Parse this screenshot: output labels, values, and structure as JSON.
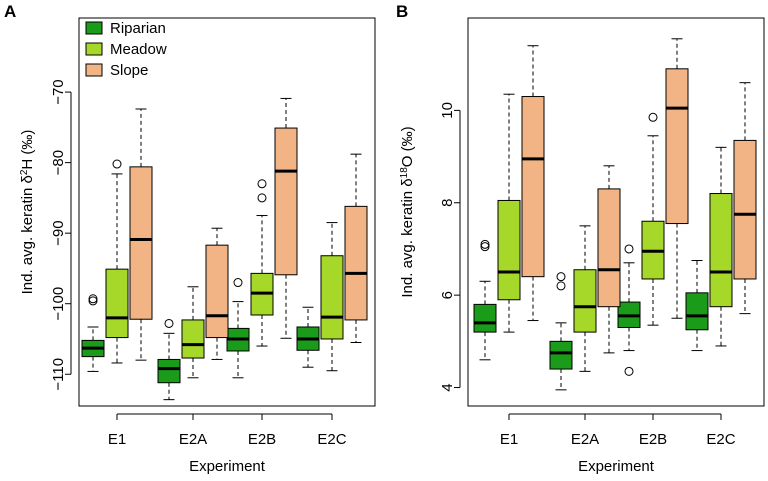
{
  "figure": {
    "colors": {
      "Riparian": "#1a9c1a",
      "Meadow": "#a6d82a",
      "Slope": "#f2b484",
      "axis": "#000000"
    }
  },
  "chart_data": [
    {
      "type": "boxplot",
      "panel_label": "A",
      "xlabel": "Experiment",
      "ylabel": "Ind. avg. keratin δ²H (‰)",
      "ylabel_parts": {
        "before": "Ind. avg. keratin δ",
        "sup": "2",
        "after": "H (‰)"
      },
      "categories": [
        "E1",
        "E2A",
        "E2B",
        "E2C"
      ],
      "yticks": [
        -110,
        -100,
        -90,
        -80,
        -70
      ],
      "ytick_labels": [
        "−110",
        "−100",
        "−90",
        "−80",
        "−70"
      ],
      "ylim": [
        -114.5,
        -59.5
      ],
      "legend": {
        "position": "top-left",
        "entries": [
          "Riparian",
          "Meadow",
          "Slope"
        ]
      },
      "series": [
        {
          "name": "Riparian",
          "boxes": [
            {
              "category": "E1",
              "whisker_low": -109.6,
              "q1": -107.5,
              "median": -106.3,
              "q3": -105.2,
              "whisker_high": -103.3,
              "outliers": [
                -99.6,
                -99.3
              ]
            },
            {
              "category": "E2A",
              "whisker_low": -113.6,
              "q1": -111.2,
              "median": -109.2,
              "q3": -107.9,
              "whisker_high": -104.2,
              "outliers": [
                -102.8
              ]
            },
            {
              "category": "E2B",
              "whisker_low": -110.5,
              "q1": -106.7,
              "median": -105.0,
              "q3": -103.5,
              "whisker_high": -99.7,
              "outliers": [
                -97.0
              ]
            },
            {
              "category": "E2C",
              "whisker_low": -109.0,
              "q1": -106.6,
              "median": -105.0,
              "q3": -103.3,
              "whisker_high": -100.5,
              "outliers": []
            }
          ]
        },
        {
          "name": "Meadow",
          "boxes": [
            {
              "category": "E1",
              "whisker_low": -108.4,
              "q1": -104.8,
              "median": -102.0,
              "q3": -95.1,
              "whisker_high": -81.6,
              "outliers": [
                -80.2
              ]
            },
            {
              "category": "E2A",
              "whisker_low": -110.5,
              "q1": -107.7,
              "median": -105.8,
              "q3": -102.3,
              "whisker_high": -97.6,
              "outliers": []
            },
            {
              "category": "E2B",
              "whisker_low": -106.0,
              "q1": -101.6,
              "median": -98.5,
              "q3": -95.7,
              "whisker_high": -87.5,
              "outliers": [
                -85.0,
                -83.0
              ]
            },
            {
              "category": "E2C",
              "whisker_low": -109.5,
              "q1": -105.0,
              "median": -101.9,
              "q3": -93.2,
              "whisker_high": -88.5,
              "outliers": []
            }
          ]
        },
        {
          "name": "Slope",
          "boxes": [
            {
              "category": "E1",
              "whisker_low": -108.0,
              "q1": -102.2,
              "median": -90.9,
              "q3": -80.6,
              "whisker_high": -72.4,
              "outliers": []
            },
            {
              "category": "E2A",
              "whisker_low": -107.9,
              "q1": -104.8,
              "median": -101.7,
              "q3": -91.7,
              "whisker_high": -89.3,
              "outliers": []
            },
            {
              "category": "E2B",
              "whisker_low": -104.9,
              "q1": -95.9,
              "median": -81.2,
              "q3": -75.1,
              "whisker_high": -70.9,
              "outliers": []
            },
            {
              "category": "E2C",
              "whisker_low": -105.5,
              "q1": -102.3,
              "median": -95.7,
              "q3": -86.2,
              "whisker_high": -78.8,
              "outliers": []
            }
          ]
        }
      ]
    },
    {
      "type": "boxplot",
      "panel_label": "B",
      "xlabel": "Experiment",
      "ylabel": "Ind. avg. keratin δ¹⁸O (‰)",
      "ylabel_parts": {
        "before": "Ind. avg. keratin δ",
        "sup": "18",
        "after": "O (‰)"
      },
      "categories": [
        "E1",
        "E2A",
        "E2B",
        "E2C"
      ],
      "yticks": [
        4,
        6,
        8,
        10
      ],
      "ytick_labels": [
        "4",
        "6",
        "8",
        "10"
      ],
      "ylim": [
        3.6,
        12.0
      ],
      "legend": null,
      "series": [
        {
          "name": "Riparian",
          "boxes": [
            {
              "category": "E1",
              "whisker_low": 4.6,
              "q1": 5.2,
              "median": 5.4,
              "q3": 5.8,
              "whisker_high": 6.3,
              "outliers": [
                7.05,
                7.1
              ]
            },
            {
              "category": "E2A",
              "whisker_low": 3.95,
              "q1": 4.4,
              "median": 4.75,
              "q3": 5.0,
              "whisker_high": 5.4,
              "outliers": [
                6.2,
                6.4
              ]
            },
            {
              "category": "E2B",
              "whisker_low": 4.8,
              "q1": 5.3,
              "median": 5.55,
              "q3": 5.85,
              "whisker_high": 6.7,
              "outliers": [
                4.35,
                7.0
              ]
            },
            {
              "category": "E2C",
              "whisker_low": 4.8,
              "q1": 5.25,
              "median": 5.55,
              "q3": 6.05,
              "whisker_high": 6.75,
              "outliers": []
            }
          ]
        },
        {
          "name": "Meadow",
          "boxes": [
            {
              "category": "E1",
              "whisker_low": 5.2,
              "q1": 5.9,
              "median": 6.5,
              "q3": 8.05,
              "whisker_high": 10.35,
              "outliers": []
            },
            {
              "category": "E2A",
              "whisker_low": 4.35,
              "q1": 5.2,
              "median": 5.75,
              "q3": 6.55,
              "whisker_high": 7.5,
              "outliers": []
            },
            {
              "category": "E2B",
              "whisker_low": 5.35,
              "q1": 6.35,
              "median": 6.95,
              "q3": 7.6,
              "whisker_high": 9.45,
              "outliers": [
                9.85
              ]
            },
            {
              "category": "E2C",
              "whisker_low": 4.9,
              "q1": 5.75,
              "median": 6.5,
              "q3": 8.2,
              "whisker_high": 9.2,
              "outliers": []
            }
          ]
        },
        {
          "name": "Slope",
          "boxes": [
            {
              "category": "E1",
              "whisker_low": 5.45,
              "q1": 6.4,
              "median": 8.95,
              "q3": 10.3,
              "whisker_high": 11.4,
              "outliers": []
            },
            {
              "category": "E2A",
              "whisker_low": 4.75,
              "q1": 5.75,
              "median": 6.55,
              "q3": 8.3,
              "whisker_high": 8.8,
              "outliers": []
            },
            {
              "category": "E2B",
              "whisker_low": 5.5,
              "q1": 7.55,
              "median": 10.05,
              "q3": 10.9,
              "whisker_high": 11.55,
              "outliers": []
            },
            {
              "category": "E2C",
              "whisker_low": 5.6,
              "q1": 6.35,
              "median": 7.75,
              "q3": 9.35,
              "whisker_high": 10.6,
              "outliers": []
            }
          ]
        }
      ]
    }
  ]
}
